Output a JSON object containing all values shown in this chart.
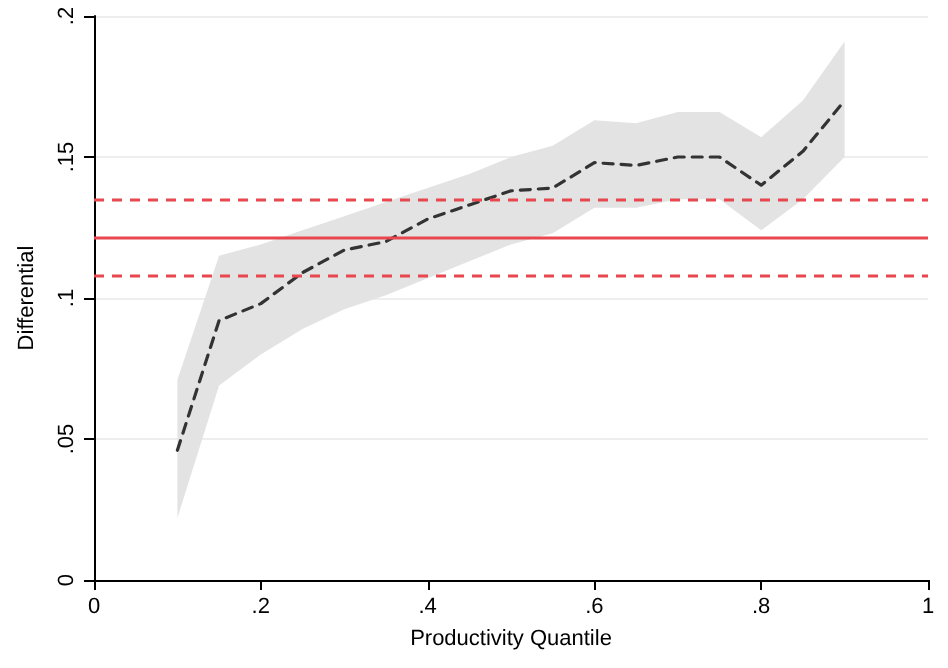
{
  "chart_data": {
    "type": "line",
    "xlabel": "Productivity Quantile",
    "ylabel": "Differential",
    "x": [
      0.1,
      0.15,
      0.2,
      0.25,
      0.3,
      0.35,
      0.4,
      0.45,
      0.5,
      0.55,
      0.6,
      0.65,
      0.7,
      0.75,
      0.8,
      0.85,
      0.9
    ],
    "series": [
      {
        "color": "#333333",
        "line_style": "dashed",
        "values": [
          0.046,
          0.092,
          0.098,
          0.109,
          0.117,
          0.12,
          0.128,
          0.133,
          0.138,
          0.139,
          0.148,
          0.147,
          0.15,
          0.15,
          0.14,
          0.152,
          0.17
        ],
        "lower": [
          0.022,
          0.069,
          0.08,
          0.089,
          0.096,
          0.101,
          0.107,
          0.113,
          0.119,
          0.123,
          0.132,
          0.132,
          0.135,
          0.135,
          0.124,
          0.135,
          0.15
        ],
        "upper": [
          0.071,
          0.115,
          0.119,
          0.124,
          0.129,
          0.134,
          0.139,
          0.144,
          0.15,
          0.154,
          0.163,
          0.162,
          0.166,
          0.166,
          0.157,
          0.17,
          0.191
        ]
      }
    ],
    "ref_lines": [
      {
        "axis": "y",
        "value": 0.1214,
        "color": "#e8474f",
        "line_style": "solid"
      },
      {
        "axis": "y",
        "value": 0.1347,
        "color": "#e8474f",
        "line_style": "dashed"
      },
      {
        "axis": "y",
        "value": 0.1079,
        "color": "#e8474f",
        "line_style": "dashed"
      }
    ],
    "xlim": [
      0,
      1
    ],
    "xticks": [
      {
        "value": 0,
        "label": "0"
      },
      {
        "value": 0.2,
        "label": ".2"
      },
      {
        "value": 0.4,
        "label": ".4"
      },
      {
        "value": 0.6,
        "label": ".6"
      },
      {
        "value": 0.8,
        "label": ".8"
      },
      {
        "value": 1,
        "label": "1"
      }
    ],
    "ylim": [
      0,
      0.2
    ],
    "yticks": [
      {
        "value": 0,
        "label": "0"
      },
      {
        "value": 0.05,
        "label": ".05"
      },
      {
        "value": 0.1,
        "label": ".1"
      },
      {
        "value": 0.15,
        "label": ".15"
      },
      {
        "value": 0.2,
        "label": ".2"
      }
    ],
    "grid": "y",
    "marker": "none"
  }
}
